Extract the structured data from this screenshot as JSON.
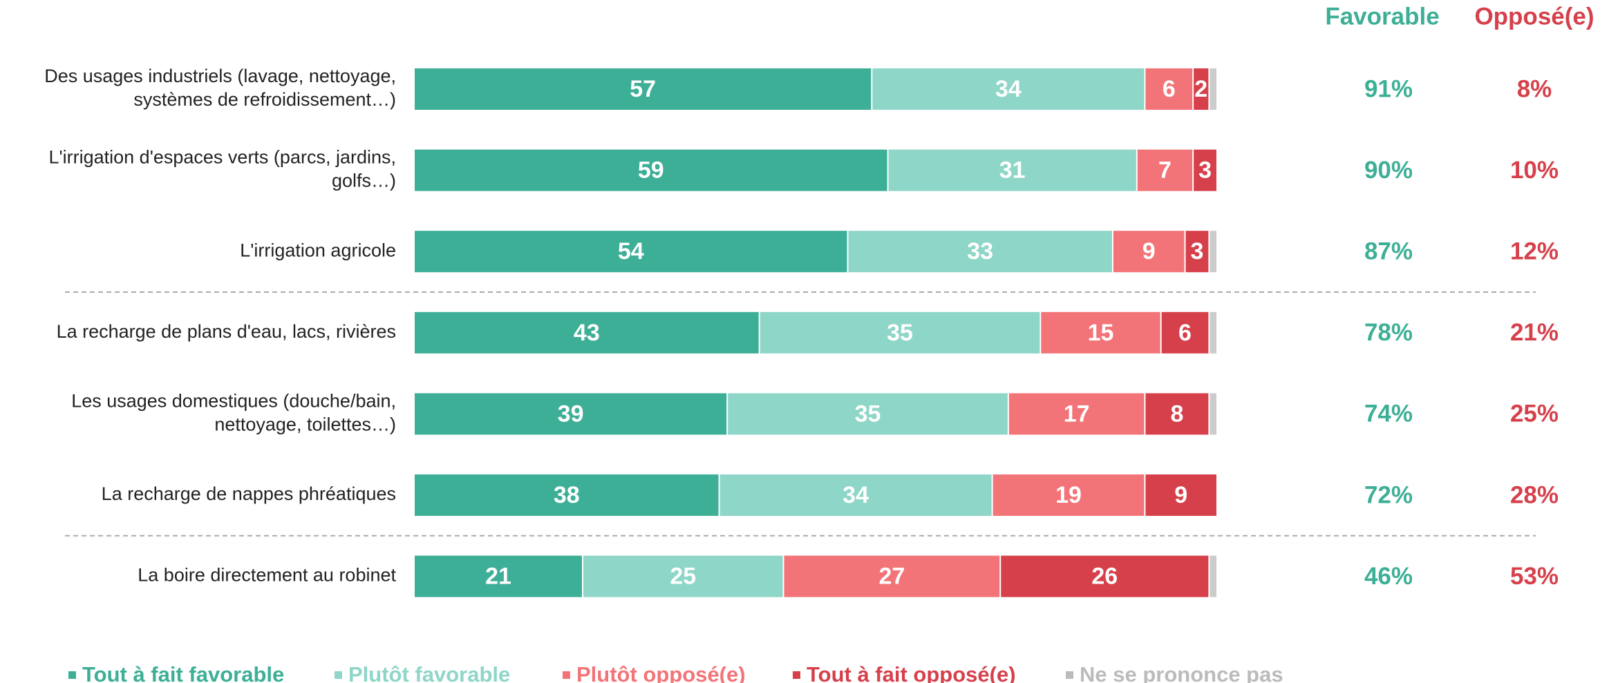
{
  "chart_data": {
    "type": "stacked_barh",
    "categories": [
      "Des usages industriels (lavage, nettoyage,\nsystèmes de refroidissement…)",
      "L'irrigation d'espaces verts (parcs, jardins,\ngolfs…)",
      "L'irrigation agricole",
      "La recharge de plans d'eau, lacs, rivières",
      "Les usages domestiques (douche/bain,\nnettoyage, toilettes…)",
      "La recharge de nappes phréatiques",
      "La boire directement au robinet"
    ],
    "series": [
      {
        "name": "Tout à fait favorable",
        "color": "#3daf96",
        "values": [
          57,
          59,
          54,
          43,
          39,
          38,
          21
        ]
      },
      {
        "name": "Plutôt favorable",
        "color": "#8ed6c8",
        "values": [
          34,
          31,
          33,
          35,
          35,
          34,
          25
        ]
      },
      {
        "name": "Plutôt opposé(e)",
        "color": "#f27478",
        "values": [
          6,
          7,
          9,
          15,
          17,
          19,
          27
        ]
      },
      {
        "name": "Tout à fait opposé(e)",
        "color": "#d6404b",
        "values": [
          2,
          3,
          3,
          6,
          8,
          9,
          26
        ]
      },
      {
        "name": "Ne se prononce pas",
        "color": "#cccccc",
        "legend_color": "#bbbbbb",
        "values": [
          1,
          0,
          1,
          1,
          1,
          0,
          1
        ]
      }
    ],
    "xlim": [
      0,
      100
    ],
    "summary_columns": [
      {
        "name": "Favorable",
        "color": "#3daf96",
        "values": [
          91,
          90,
          87,
          78,
          74,
          72,
          46
        ],
        "value_labels": [
          "91%",
          "90%",
          "87%",
          "78%",
          "74%",
          "72%",
          "46%"
        ]
      },
      {
        "name": "Opposé(e)",
        "color": "#d6404b",
        "values": [
          8,
          10,
          12,
          21,
          25,
          28,
          53
        ],
        "value_labels": [
          "8%",
          "10%",
          "12%",
          "21%",
          "25%",
          "28%",
          "53%"
        ]
      }
    ]
  }
}
